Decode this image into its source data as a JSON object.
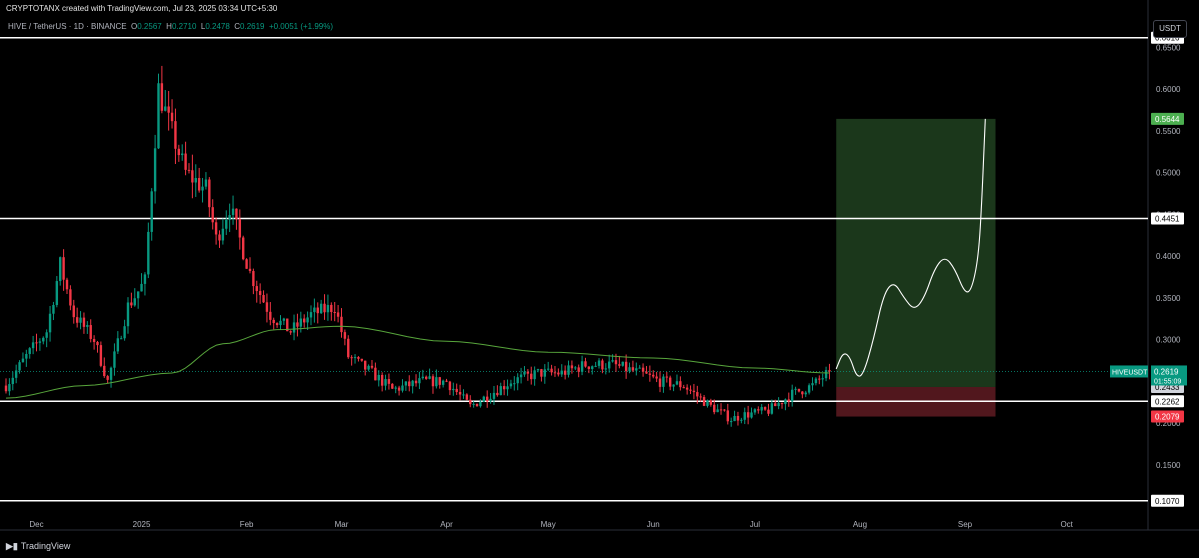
{
  "header": {
    "attribution": "CRYPTOTANX created with TradingView.com, Jul 23, 2025 03:34 UTC+5:30",
    "symbol_line": "HIVE / TetherUS · 1D · BINANCE",
    "o_label": "O",
    "o": "0.2567",
    "h_label": "H",
    "h": "0.2710",
    "l_label": "L",
    "l": "0.2478",
    "c_label": "C",
    "c": "0.2619",
    "change": "+0.0051 (+1.99%)"
  },
  "currency_button": "USDT",
  "footer": {
    "logo_text": "TradingView"
  },
  "colors": {
    "background": "#000000",
    "up": "#089981",
    "down": "#f23645",
    "ma": "#58a63c",
    "profit_zone": "#1e3d1e",
    "loss_zone": "#5a1a20",
    "level_line": "#ffffff"
  },
  "chart_data": {
    "type": "candlestick",
    "symbol": "HIVEUSDT",
    "timeframe": "1D",
    "exchange": "BINANCE",
    "ylim": [
      0.09,
      0.69
    ],
    "y_ticks": [
      0.15,
      0.2,
      0.25,
      0.3,
      0.35,
      0.4,
      0.45,
      0.5,
      0.55,
      0.6,
      0.65
    ],
    "y_tick_labels": [
      "0.1500",
      "0.2000",
      "0.2500",
      "0.3000",
      "0.3500",
      "0.4000",
      "0.4500",
      "0.5000",
      "0.5500",
      "0.6000",
      "0.6500"
    ],
    "x_start_date": "2024-11-22",
    "x_end_date": "2025-10-25",
    "x_ticks": [
      {
        "date": "2024-12-01",
        "label": "Dec"
      },
      {
        "date": "2025-01-01",
        "label": "2025"
      },
      {
        "date": "2025-02-01",
        "label": "Feb"
      },
      {
        "date": "2025-03-01",
        "label": "Mar"
      },
      {
        "date": "2025-04-01",
        "label": "Apr"
      },
      {
        "date": "2025-05-01",
        "label": "May"
      },
      {
        "date": "2025-06-01",
        "label": "Jun"
      },
      {
        "date": "2025-07-01",
        "label": "Jul"
      },
      {
        "date": "2025-08-01",
        "label": "Aug"
      },
      {
        "date": "2025-09-01",
        "label": "Sep"
      },
      {
        "date": "2025-10-01",
        "label": "Oct"
      }
    ],
    "close_anchors": [
      [
        "2024-11-22",
        0.245
      ],
      [
        "2024-11-28",
        0.28
      ],
      [
        "2024-12-04",
        0.31
      ],
      [
        "2024-12-08",
        0.39
      ],
      [
        "2024-12-12",
        0.33
      ],
      [
        "2024-12-18",
        0.3
      ],
      [
        "2024-12-22",
        0.25
      ],
      [
        "2024-12-28",
        0.34
      ],
      [
        "2025-01-02",
        0.37
      ],
      [
        "2025-01-06",
        0.6
      ],
      [
        "2025-01-09",
        0.56
      ],
      [
        "2025-01-14",
        0.5
      ],
      [
        "2025-01-20",
        0.48
      ],
      [
        "2025-01-23",
        0.42
      ],
      [
        "2025-01-27",
        0.46
      ],
      [
        "2025-02-02",
        0.38
      ],
      [
        "2025-02-08",
        0.33
      ],
      [
        "2025-02-14",
        0.31
      ],
      [
        "2025-02-20",
        0.33
      ],
      [
        "2025-02-27",
        0.34
      ],
      [
        "2025-03-03",
        0.28
      ],
      [
        "2025-03-10",
        0.26
      ],
      [
        "2025-03-16",
        0.24
      ],
      [
        "2025-03-25",
        0.25
      ],
      [
        "2025-04-01",
        0.25
      ],
      [
        "2025-04-08",
        0.22
      ],
      [
        "2025-04-12",
        0.23
      ],
      [
        "2025-04-20",
        0.25
      ],
      [
        "2025-04-28",
        0.26
      ],
      [
        "2025-05-05",
        0.26
      ],
      [
        "2025-05-12",
        0.27
      ],
      [
        "2025-05-20",
        0.27
      ],
      [
        "2025-05-28",
        0.26
      ],
      [
        "2025-06-03",
        0.25
      ],
      [
        "2025-06-10",
        0.245
      ],
      [
        "2025-06-18",
        0.22
      ],
      [
        "2025-06-24",
        0.205
      ],
      [
        "2025-06-28",
        0.21
      ],
      [
        "2025-07-05",
        0.215
      ],
      [
        "2025-07-12",
        0.235
      ],
      [
        "2025-07-18",
        0.245
      ],
      [
        "2025-07-23",
        0.2619
      ]
    ],
    "moving_average": [
      [
        "2024-11-22",
        0.23
      ],
      [
        "2024-12-15",
        0.245
      ],
      [
        "2025-01-10",
        0.26
      ],
      [
        "2025-01-25",
        0.295
      ],
      [
        "2025-02-10",
        0.312
      ],
      [
        "2025-03-01",
        0.316
      ],
      [
        "2025-04-01",
        0.298
      ],
      [
        "2025-05-01",
        0.285
      ],
      [
        "2025-06-01",
        0.278
      ],
      [
        "2025-07-01",
        0.266
      ],
      [
        "2025-07-23",
        0.26
      ]
    ],
    "last_price": {
      "label": "HIVEUSDT",
      "value": "0.2619",
      "countdown": "01:55:09",
      "y": 0.2619
    },
    "horizontal_levels": [
      {
        "y": 0.6616,
        "label": "0.6616"
      },
      {
        "y": 0.4451,
        "label": "0.4451"
      },
      {
        "y": 0.2262,
        "label": "0.2262"
      },
      {
        "y": 0.107,
        "label": "0.1070"
      }
    ],
    "position": {
      "type": "long",
      "start_date": "2025-07-25",
      "end_date": "2025-09-10",
      "target": 0.5644,
      "target_label": "0.5644",
      "entry": 0.2433,
      "entry_label": "0.2433",
      "stop": 0.2079,
      "stop_label": "0.2079"
    },
    "projection_path": [
      [
        "2025-07-25",
        0.265
      ],
      [
        "2025-07-27",
        0.285
      ],
      [
        "2025-07-29",
        0.28
      ],
      [
        "2025-07-31",
        0.255
      ],
      [
        "2025-08-02",
        0.258
      ],
      [
        "2025-08-05",
        0.3
      ],
      [
        "2025-08-08",
        0.355
      ],
      [
        "2025-08-11",
        0.37
      ],
      [
        "2025-08-14",
        0.35
      ],
      [
        "2025-08-17",
        0.335
      ],
      [
        "2025-08-20",
        0.35
      ],
      [
        "2025-08-23",
        0.385
      ],
      [
        "2025-08-26",
        0.4
      ],
      [
        "2025-08-29",
        0.385
      ],
      [
        "2025-09-01",
        0.355
      ],
      [
        "2025-09-03",
        0.36
      ],
      [
        "2025-09-05",
        0.4
      ],
      [
        "2025-09-06",
        0.47
      ],
      [
        "2025-09-07",
        0.5644
      ]
    ]
  }
}
